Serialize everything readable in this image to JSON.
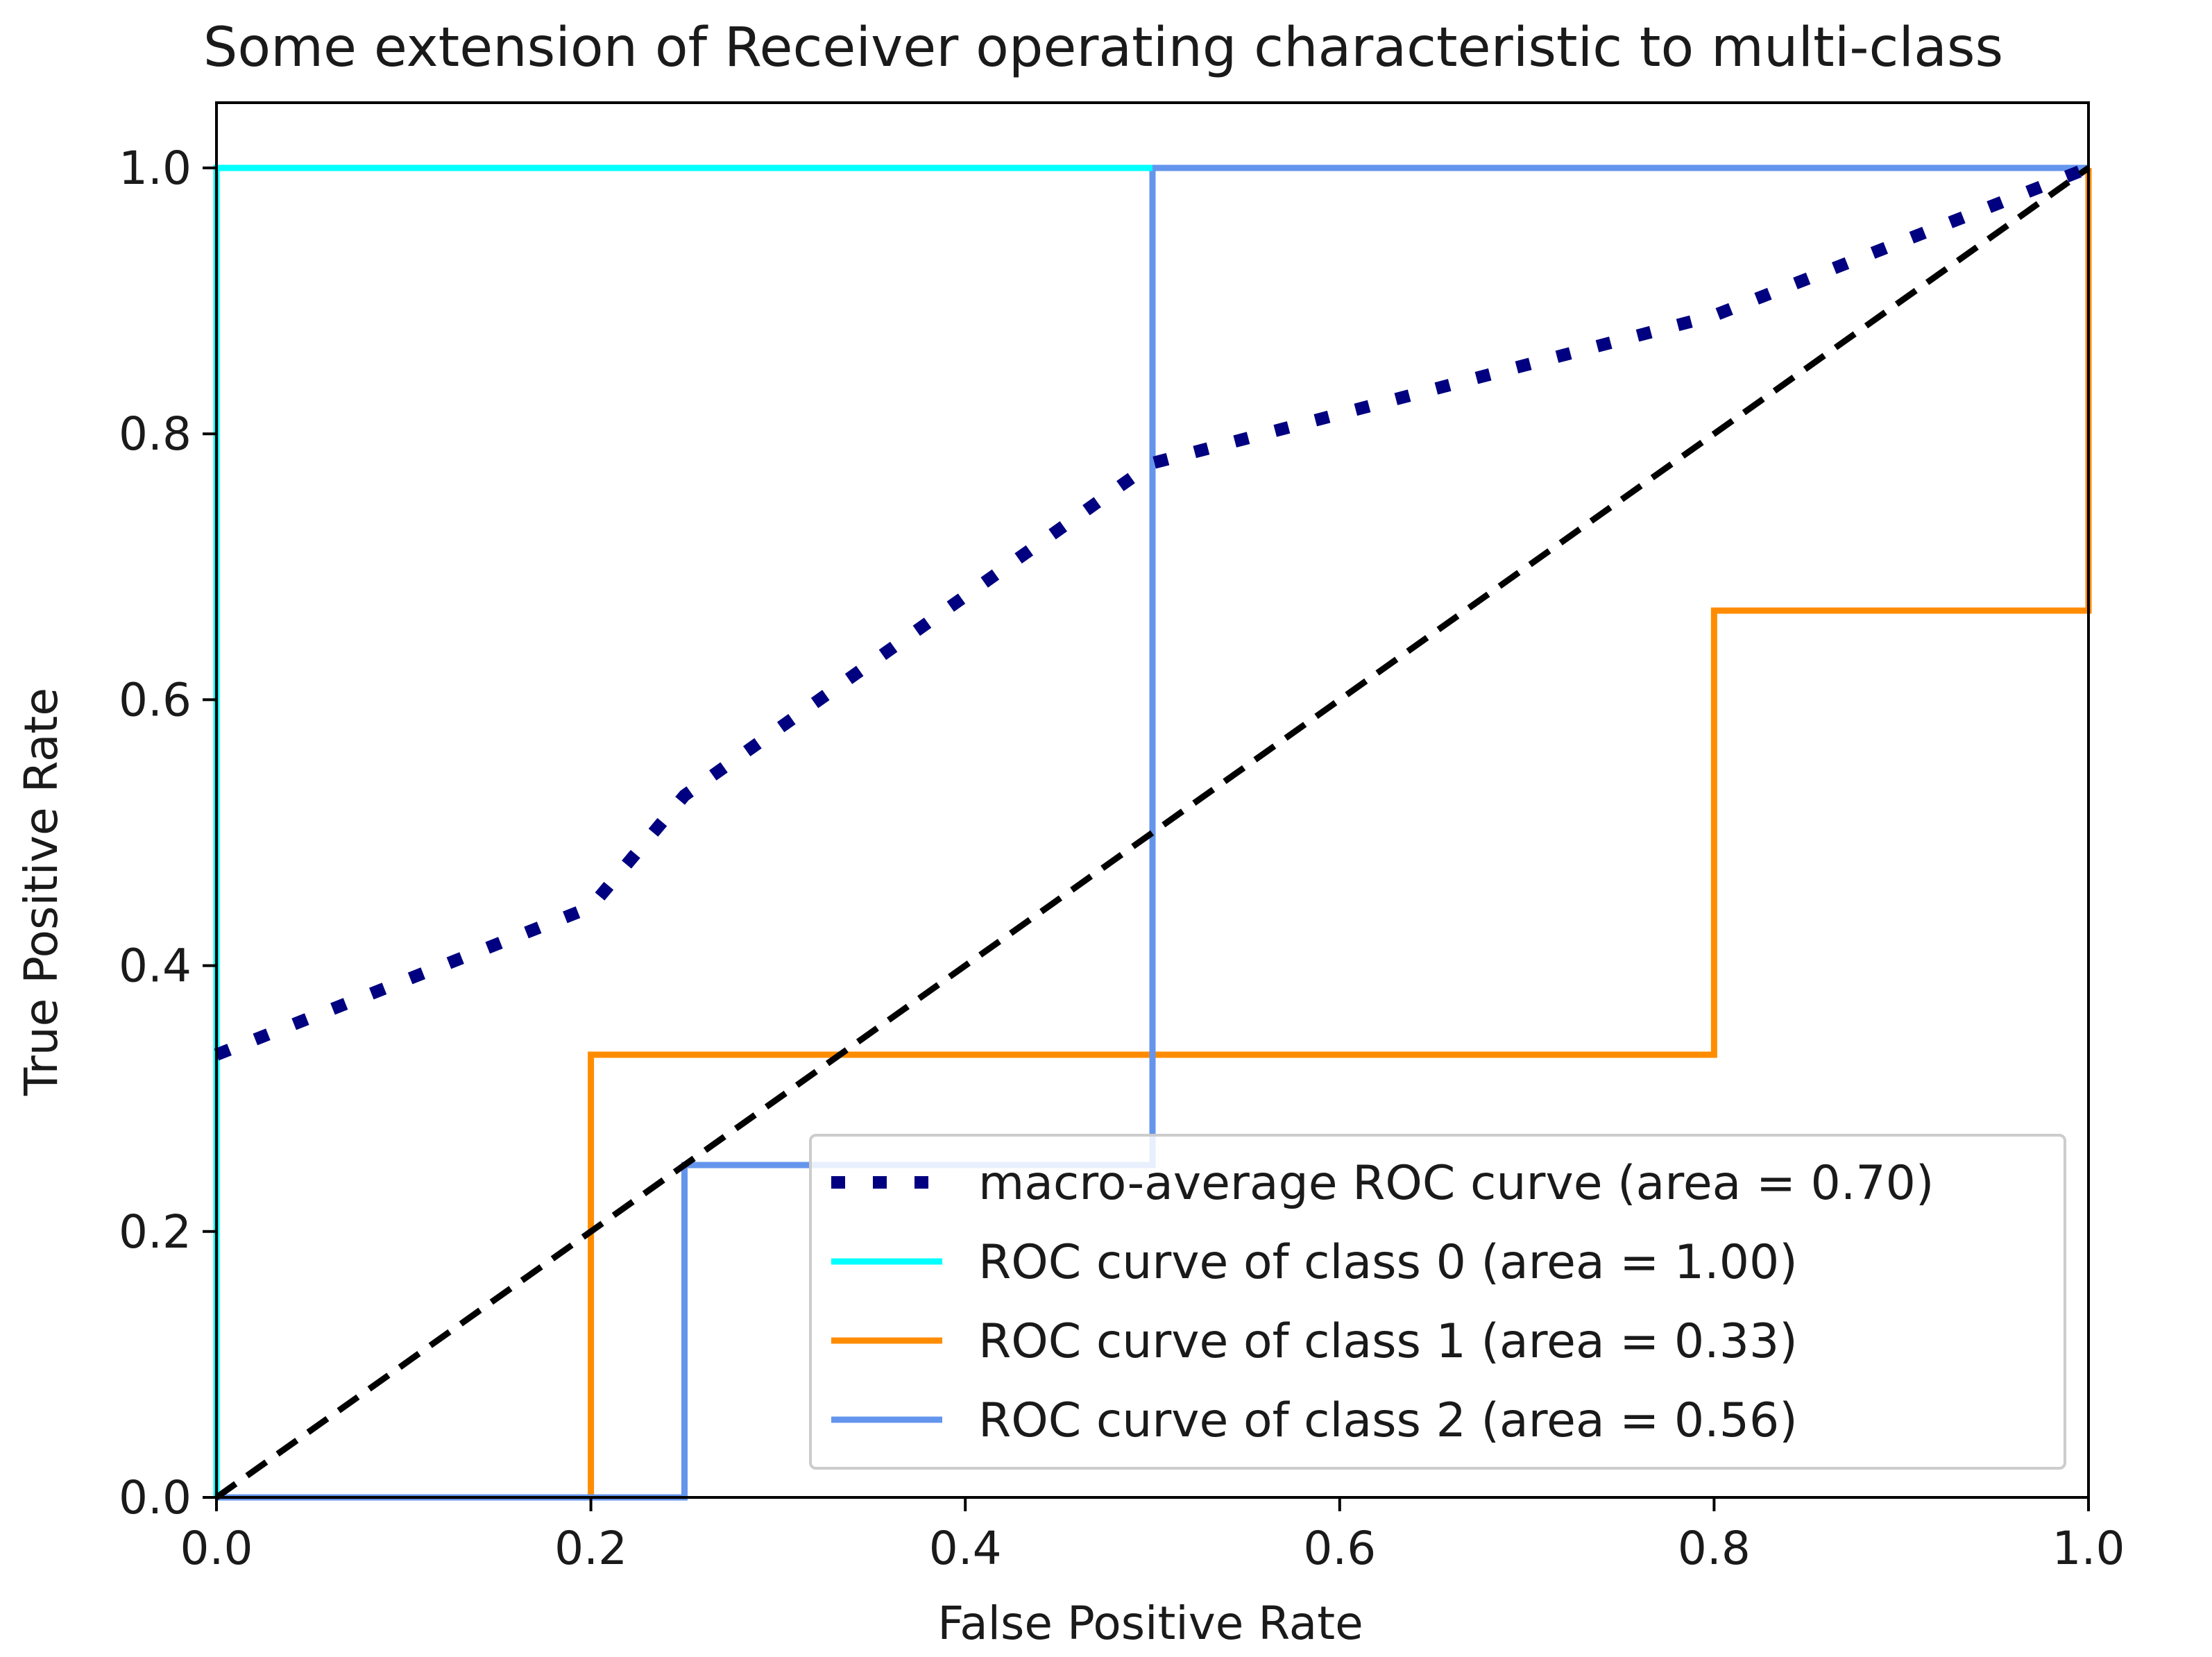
{
  "chart_data": {
    "type": "line",
    "title": "Some extension of Receiver operating characteristic to multi-class",
    "xlabel": "False Positive Rate",
    "ylabel": "True Positive Rate",
    "xlim": [
      0.0,
      1.0
    ],
    "ylim": [
      0.0,
      1.0
    ],
    "xticks": [
      "0.0",
      "0.2",
      "0.4",
      "0.6",
      "0.8",
      "1.0"
    ],
    "yticks": [
      "0.0",
      "0.2",
      "0.4",
      "0.6",
      "0.8",
      "1.0"
    ],
    "grid": false,
    "legend_position": "lower-right",
    "series": [
      {
        "name": "macro-average ROC curve (area = 0.70)",
        "color": "#000080",
        "style": "dotted",
        "x": [
          0.0,
          0.2,
          0.25,
          0.5,
          0.8,
          1.0
        ],
        "y": [
          0.333,
          0.444,
          0.528,
          0.778,
          0.889,
          1.0
        ]
      },
      {
        "name": "ROC curve of class 0 (area = 1.00)",
        "color": "#00ffff",
        "style": "solid",
        "x": [
          0.0,
          0.0,
          0.5
        ],
        "y": [
          0.0,
          1.0,
          1.0
        ]
      },
      {
        "name": "ROC curve of class 1 (area = 0.33)",
        "color": "#ff8c00",
        "style": "solid",
        "x": [
          0.2,
          0.2,
          0.8,
          0.8,
          1.0,
          1.0
        ],
        "y": [
          0.0,
          0.333,
          0.333,
          0.667,
          0.667,
          1.0
        ]
      },
      {
        "name": "ROC curve of class 2 (area = 0.56)",
        "color": "#6495ed",
        "style": "solid",
        "x": [
          0.0,
          0.25,
          0.25,
          0.5,
          0.5,
          1.0
        ],
        "y": [
          0.0,
          0.0,
          0.25,
          0.25,
          1.0,
          1.0
        ]
      }
    ],
    "reference_line": {
      "name": "chance",
      "color": "#000000",
      "style": "dashed",
      "x": [
        0.0,
        1.0
      ],
      "y": [
        0.0,
        1.0
      ]
    }
  }
}
